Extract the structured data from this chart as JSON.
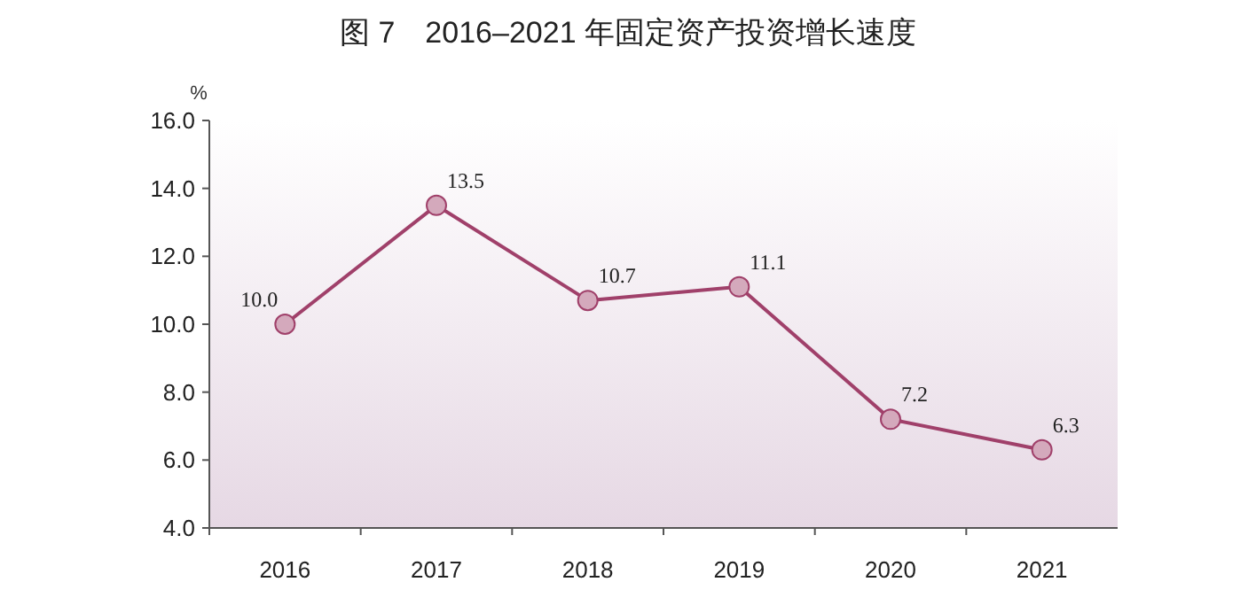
{
  "chart_data": {
    "type": "line",
    "title": "图 7　2016–2021 年固定资产投资增长速度",
    "ylabel": "%",
    "categories": [
      "2016",
      "2017",
      "2018",
      "2019",
      "2020",
      "2021"
    ],
    "series": [
      {
        "color": "#a0406a",
        "values": [
          10.0,
          13.5,
          10.7,
          11.1,
          7.2,
          6.3
        ],
        "value_labels": [
          "10.0",
          "13.5",
          "10.7",
          "11.1",
          "7.2",
          "6.3"
        ]
      }
    ],
    "ylim": [
      4,
      16
    ],
    "yticks": [
      {
        "value": 4,
        "label": "4.0"
      },
      {
        "value": 6,
        "label": "6.0"
      },
      {
        "value": 8,
        "label": "8.0"
      },
      {
        "value": 10,
        "label": "10.0"
      },
      {
        "value": 12,
        "label": "12.0"
      },
      {
        "value": 14,
        "label": "14.0"
      },
      {
        "value": 16,
        "label": "16.0"
      }
    ],
    "marker": "circle"
  }
}
